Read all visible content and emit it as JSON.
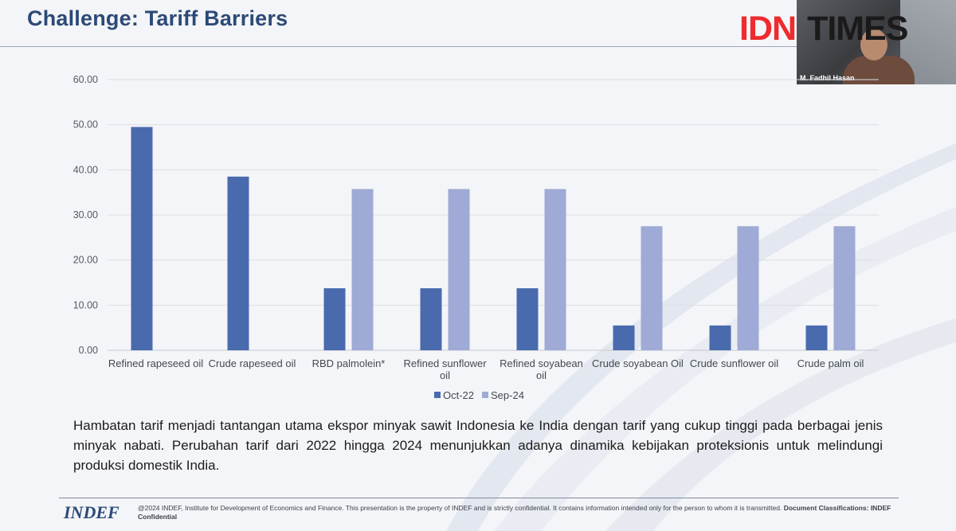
{
  "slide": {
    "title": "Challenge: Tariff Barriers",
    "logo_part1": "IDN",
    "logo_part2": "TIMES",
    "presenter_name": "M. Fadhil Hasan",
    "body_text": "Hambatan tarif menjadi tantangan utama ekspor minyak sawit Indonesia ke India dengan tarif yang cukup tinggi pada berbagai jenis minyak nabati. Perubahan tarif dari 2022 hingga 2024 menunjukkan adanya dinamika kebijakan proteksionis untuk melindungi produksi domestik India.",
    "footer_logo": "INDEF",
    "footer_text": "@2024 INDEF, Institute for Development of Economics and Finance. This presentation is the property of INDEF and is strictly confidential. It contains information intended only for the person to whom it is transmitted.",
    "footer_classification": "Document Classifications: INDEF Confidential"
  },
  "colors": {
    "title": "#2c4a78",
    "series_oct22": "#4a6aae",
    "series_sep24": "#9fabd6",
    "logo_red": "#ee2b2e"
  },
  "chart_data": {
    "type": "bar",
    "title": "",
    "xlabel": "",
    "ylabel": "",
    "ylim": [
      0,
      60
    ],
    "yticks": [
      "0.00",
      "10.00",
      "20.00",
      "30.00",
      "40.00",
      "50.00",
      "60.00"
    ],
    "grid": true,
    "legend_position": "bottom",
    "categories": [
      [
        "Refined rapeseed oil"
      ],
      [
        "Crude rapeseed oil"
      ],
      [
        "RBD palmolein*"
      ],
      [
        "Refined sunflower",
        "oil"
      ],
      [
        "Refined soyabean",
        "oil"
      ],
      [
        "Crude soyabean Oil"
      ],
      [
        "Crude sunflower oil"
      ],
      [
        "Crude palm oil"
      ]
    ],
    "series": [
      {
        "name": "Oct-22",
        "color": "#4a6aae",
        "values": [
          49.5,
          38.5,
          13.75,
          13.75,
          13.75,
          5.5,
          5.5,
          5.5
        ]
      },
      {
        "name": "Sep-24",
        "color": "#9fabd6",
        "values": [
          0,
          0,
          35.75,
          35.75,
          35.75,
          27.5,
          27.5,
          27.5
        ]
      }
    ]
  }
}
